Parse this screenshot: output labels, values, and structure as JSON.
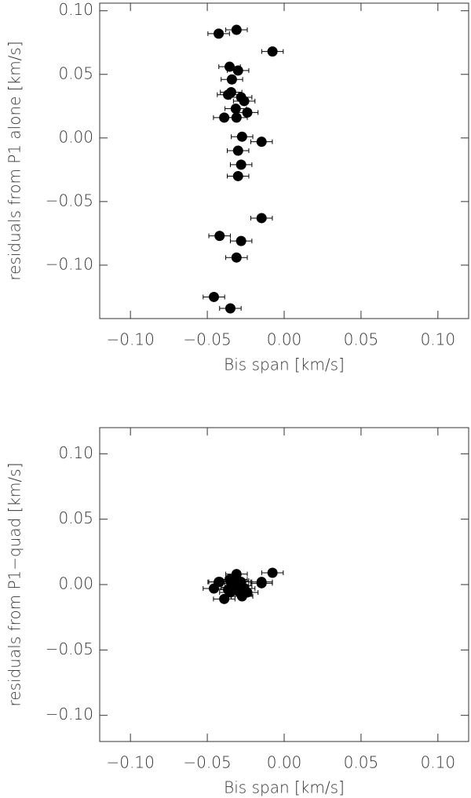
{
  "chart_data": [
    {
      "type": "scatter",
      "xlabel": "Bis span [km/s]",
      "ylabel": "residuals from P1 alone [km/s]",
      "x": [
        -0.0426,
        -0.031,
        -0.0076,
        -0.0355,
        -0.03,
        -0.034,
        -0.0345,
        -0.0365,
        -0.028,
        -0.026,
        -0.0315,
        -0.024,
        -0.039,
        -0.031,
        -0.0274,
        -0.0147,
        -0.03,
        -0.028,
        -0.03,
        -0.0147,
        -0.042,
        -0.028,
        -0.031,
        -0.0457,
        -0.035
      ],
      "values": [
        0.082,
        0.085,
        0.068,
        0.056,
        0.053,
        0.046,
        0.036,
        0.034,
        0.032,
        0.029,
        0.023,
        0.02,
        0.016,
        0.016,
        0.001,
        -0.003,
        -0.01,
        -0.021,
        -0.03,
        -0.063,
        -0.077,
        -0.081,
        -0.094,
        -0.125,
        -0.134
      ],
      "x_errors": [
        0.007,
        0.007,
        0.007,
        0.007,
        0.007,
        0.007,
        0.007,
        0.007,
        0.007,
        0.007,
        0.007,
        0.007,
        0.007,
        0.007,
        0.007,
        0.007,
        0.007,
        0.007,
        0.007,
        0.007,
        0.007,
        0.007,
        0.007,
        0.007,
        0.007
      ],
      "color": "#000000",
      "xlim": [
        -0.12,
        0.12
      ],
      "ylim": [
        -0.142,
        0.106
      ],
      "xticks": [
        {
          "value": -0.1,
          "label": "−0.10"
        },
        {
          "value": -0.05,
          "label": "−0.05"
        },
        {
          "value": 0,
          "label": "0.00"
        },
        {
          "value": 0.05,
          "label": "0.05"
        },
        {
          "value": 0.1,
          "label": "0.10"
        }
      ],
      "yticks": [
        {
          "value": -0.1,
          "label": "−0.10"
        },
        {
          "value": -0.05,
          "label": "−0.05"
        },
        {
          "value": 0,
          "label": "0.00"
        },
        {
          "value": 0.05,
          "label": "0.05"
        },
        {
          "value": 0.1,
          "label": "0.10"
        }
      ]
    },
    {
      "type": "scatter",
      "xlabel": "Bis span [km/s]",
      "ylabel": "residuals from P1−quad [km/s]",
      "x": [
        -0.0426,
        -0.031,
        -0.0076,
        -0.0355,
        -0.03,
        -0.034,
        -0.0345,
        -0.0365,
        -0.028,
        -0.026,
        -0.0315,
        -0.024,
        -0.039,
        -0.031,
        -0.0274,
        -0.0147,
        -0.03,
        -0.028,
        -0.03,
        -0.0147,
        -0.042,
        -0.028,
        -0.031,
        -0.0457,
        -0.035
      ],
      "values": [
        0.002,
        0.008,
        0.009,
        0.004,
        0.003,
        -0.002,
        0.001,
        -0.004,
        0.002,
        -0.003,
        -0.001,
        -0.006,
        -0.011,
        0.004,
        -0.009,
        0.002,
        -0.005,
        -0.001,
        0.0,
        0.001,
        0.002,
        -0.007,
        -0.003,
        -0.003,
        -0.006
      ],
      "x_errors": [
        0.007,
        0.007,
        0.007,
        0.007,
        0.007,
        0.007,
        0.007,
        0.007,
        0.007,
        0.007,
        0.007,
        0.007,
        0.007,
        0.007,
        0.007,
        0.007,
        0.007,
        0.007,
        0.007,
        0.007,
        0.007,
        0.007,
        0.007,
        0.007,
        0.007
      ],
      "color": "#000000",
      "xlim": [
        -0.12,
        0.12
      ],
      "ylim": [
        -0.12,
        0.12
      ],
      "xticks": [
        {
          "value": -0.1,
          "label": "−0.10"
        },
        {
          "value": -0.05,
          "label": "−0.05"
        },
        {
          "value": 0,
          "label": "0.00"
        },
        {
          "value": 0.05,
          "label": "0.05"
        },
        {
          "value": 0.1,
          "label": "0.10"
        }
      ],
      "yticks": [
        {
          "value": -0.1,
          "label": "−0.10"
        },
        {
          "value": -0.05,
          "label": "−0.05"
        },
        {
          "value": 0,
          "label": "0.00"
        },
        {
          "value": 0.05,
          "label": "0.05"
        },
        {
          "value": 0.1,
          "label": "0.10"
        }
      ]
    }
  ]
}
